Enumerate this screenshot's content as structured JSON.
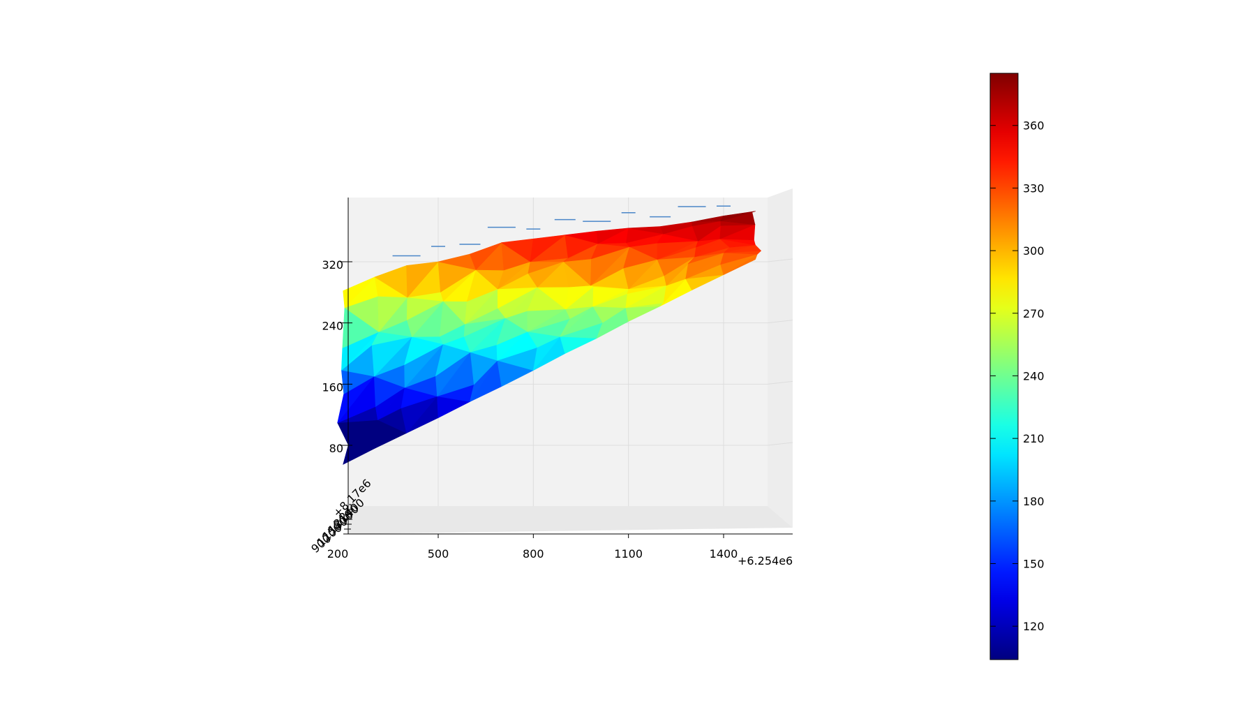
{
  "chart_data": {
    "type": "surface3d",
    "title": "",
    "xlabel": "",
    "ylabel": "",
    "zlabel": "",
    "x_ticks": [
      "200",
      "500",
      "800",
      "1100",
      "1400"
    ],
    "x_offset_label": "+6.254e6",
    "y_ticks": [
      "900",
      "1200",
      "1500",
      "1800",
      "2100",
      "2400"
    ],
    "y_offset_label": "+8.17e6",
    "z_ticks": [
      "80",
      "160",
      "240",
      "320"
    ],
    "colorbar": {
      "colormap": "jet",
      "range": [
        104,
        385
      ],
      "ticks": [
        "120",
        "150",
        "180",
        "210",
        "240",
        "270",
        "300",
        "330",
        "360"
      ]
    },
    "surface_profile": {
      "x": [
        200,
        300,
        400,
        500,
        600,
        700,
        800,
        900,
        1000,
        1100,
        1200,
        1300,
        1400,
        1500
      ],
      "z_bottom": [
        55,
        76,
        96,
        116,
        137,
        157,
        178,
        200,
        220,
        242,
        262,
        283,
        303,
        323
      ],
      "z_top": [
        282,
        300,
        315,
        320,
        330,
        345,
        350,
        355,
        360,
        364,
        366,
        372,
        380,
        386
      ]
    },
    "grid": true
  }
}
